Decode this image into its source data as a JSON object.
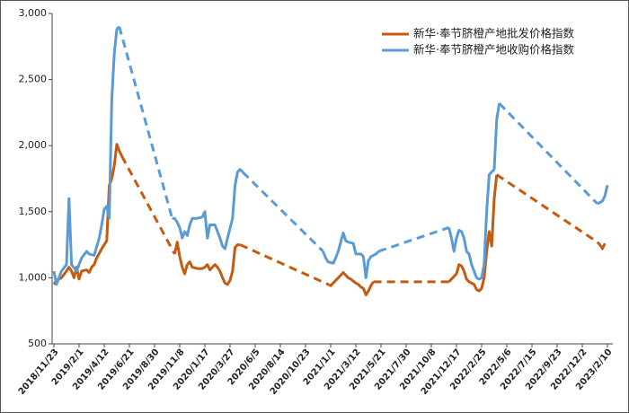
{
  "chart_data": {
    "type": "line",
    "xlim": [
      "2018/11/23",
      "2023/2/10"
    ],
    "xticks": [
      "2018/11/23",
      "2019/2/1",
      "2019/4/12",
      "2019/6/21",
      "2019/8/30",
      "2019/11/8",
      "2020/1/17",
      "2020/3/27",
      "2020/6/5",
      "2020/8/14",
      "2020/10/23",
      "2021/1/1",
      "2021/3/12",
      "2021/5/21",
      "2021/7/30",
      "2021/10/8",
      "2021/12/17",
      "2022/2/25",
      "2022/5/6",
      "2022/7/15",
      "2022/9/23",
      "2022/12/2",
      "2023/2/10"
    ],
    "ylim": [
      500,
      3000
    ],
    "yticks": [
      500,
      {
        "value": 1000,
        "label": "1,000"
      },
      {
        "value": 1500,
        "label": "1,500"
      },
      {
        "value": 2000,
        "label": "2,000"
      },
      {
        "value": 2500,
        "label": "2,500"
      },
      {
        "value": 3000,
        "label": "3,000"
      }
    ],
    "legend": "top-right",
    "series": [
      {
        "name": "新华·奉节脐橙产地批发价格指数",
        "color": "#c55a11",
        "x": [
          "2018/11/23",
          "2018/11/30",
          "2018/12/14",
          "2018/12/28",
          "2019/1/4",
          "2019/1/11",
          "2019/1/18",
          "2019/1/25",
          "2019/2/1",
          "2019/2/8",
          "2019/2/22",
          "2019/3/1",
          "2019/3/8",
          "2019/3/15",
          "2019/3/22",
          "2019/4/5",
          "2019/4/19",
          "2019/4/26",
          "2019/5/3",
          "2019/5/10",
          "2019/5/17",
          "2019/5/24",
          "2019/5/31",
          "2019/10/25",
          "2019/11/1",
          "2019/11/8",
          "2019/11/15",
          "2019/11/22",
          "2019/11/29",
          "2019/12/6",
          "2019/12/13",
          "2019/12/27",
          "2020/1/10",
          "2020/1/17",
          "2020/1/24",
          "2020/1/31",
          "2020/2/7",
          "2020/2/14",
          "2020/2/21",
          "2020/2/28",
          "2020/3/6",
          "2020/3/13",
          "2020/3/20",
          "2020/3/27",
          "2020/4/3",
          "2020/4/10",
          "2020/4/17",
          "2020/4/24",
          "2020/12/25",
          "2021/1/1",
          "2021/1/8",
          "2021/1/15",
          "2021/1/22",
          "2021/1/29",
          "2021/2/5",
          "2021/2/12",
          "2021/2/19",
          "2021/2/26",
          "2021/3/12",
          "2021/3/19",
          "2021/3/26",
          "2021/4/2",
          "2021/4/9",
          "2021/4/16",
          "2021/4/23",
          "2021/4/30",
          "2021/11/26",
          "2021/12/3",
          "2021/12/10",
          "2021/12/17",
          "2021/12/24",
          "2021/12/31",
          "2022/1/7",
          "2022/1/14",
          "2022/1/21",
          "2022/1/28",
          "2022/2/4",
          "2022/2/11",
          "2022/2/18",
          "2022/2/25",
          "2022/3/4",
          "2022/3/11",
          "2022/3/18",
          "2022/3/25",
          "2022/4/1",
          "2022/4/8",
          "2023/1/13",
          "2023/1/20",
          "2023/1/27",
          "2023/2/3"
        ],
        "values": [
          950,
          980,
          1000,
          1050,
          1080,
          1050,
          1000,
          1080,
          990,
          1050,
          1060,
          1040,
          1080,
          1100,
          1150,
          1220,
          1280,
          1700,
          1750,
          1850,
          2010,
          1960,
          1920,
          1180,
          1270,
          1160,
          1080,
          1030,
          1100,
          1120,
          1080,
          1070,
          1070,
          1080,
          1100,
          1060,
          1080,
          1100,
          1080,
          1050,
          1000,
          960,
          950,
          980,
          1050,
          1230,
          1250,
          1250,
          950,
          940,
          960,
          980,
          1000,
          1020,
          1040,
          1020,
          1000,
          990,
          960,
          950,
          930,
          920,
          870,
          900,
          940,
          970,
          970,
          990,
          1010,
          1030,
          1100,
          1090,
          1050,
          990,
          970,
          960,
          950,
          910,
          900,
          920,
          1000,
          1200,
          1350,
          1240,
          1600,
          1780,
          1270,
          1250,
          1220,
          1260
        ]
      },
      {
        "name": "新华·奉节脐橙产地收购价格指数",
        "color": "#5b9bd5",
        "x": [
          "2018/11/23",
          "2018/11/30",
          "2018/12/14",
          "2018/12/28",
          "2019/1/4",
          "2019/1/11",
          "2019/1/25",
          "2019/2/8",
          "2019/2/22",
          "2019/3/1",
          "2019/3/15",
          "2019/3/29",
          "2019/4/5",
          "2019/4/12",
          "2019/4/19",
          "2019/4/26",
          "2019/5/3",
          "2019/5/10",
          "2019/5/17",
          "2019/5/24",
          "2019/10/18",
          "2019/10/25",
          "2019/11/1",
          "2019/11/8",
          "2019/11/15",
          "2019/11/22",
          "2019/11/29",
          "2019/12/6",
          "2019/12/13",
          "2019/12/27",
          "2020/1/10",
          "2020/1/17",
          "2020/1/24",
          "2020/1/31",
          "2020/2/14",
          "2020/2/21",
          "2020/2/28",
          "2020/3/6",
          "2020/3/13",
          "2020/3/20",
          "2020/4/3",
          "2020/4/10",
          "2020/4/17",
          "2020/4/24",
          "2020/5/1",
          "2020/12/11",
          "2020/12/18",
          "2020/12/25",
          "2021/1/8",
          "2021/1/15",
          "2021/1/22",
          "2021/1/29",
          "2021/2/5",
          "2021/2/12",
          "2021/2/19",
          "2021/3/5",
          "2021/3/12",
          "2021/3/26",
          "2021/4/2",
          "2021/4/9",
          "2021/4/16",
          "2021/4/23",
          "2021/5/7",
          "2021/5/14",
          "2021/11/26",
          "2021/12/3",
          "2021/12/10",
          "2021/12/17",
          "2021/12/24",
          "2021/12/31",
          "2022/1/7",
          "2022/1/14",
          "2022/1/21",
          "2022/1/28",
          "2022/2/4",
          "2022/2/11",
          "2022/2/18",
          "2022/2/25",
          "2022/3/4",
          "2022/3/11",
          "2022/3/18",
          "2022/3/25",
          "2022/4/1",
          "2022/4/8",
          "2022/4/15",
          "2023/1/13",
          "2023/1/20",
          "2023/1/27",
          "2023/2/3",
          "2023/2/10"
        ],
        "values": [
          1050,
          950,
          1050,
          1100,
          1600,
          1100,
          1050,
          1150,
          1200,
          1180,
          1170,
          1300,
          1400,
          1520,
          1540,
          1450,
          2350,
          2700,
          2880,
          2900,
          1450,
          1450,
          1420,
          1380,
          1300,
          1350,
          1320,
          1400,
          1450,
          1450,
          1460,
          1500,
          1300,
          1400,
          1400,
          1350,
          1300,
          1240,
          1220,
          1300,
          1450,
          1700,
          1800,
          1820,
          1800,
          1200,
          1150,
          1120,
          1110,
          1150,
          1200,
          1270,
          1340,
          1280,
          1270,
          1260,
          1180,
          1180,
          1160,
          1000,
          1130,
          1160,
          1180,
          1200,
          1380,
          1300,
          1200,
          1300,
          1360,
          1350,
          1300,
          1200,
          1180,
          1100,
          1050,
          1000,
          990,
          1000,
          1100,
          1500,
          1780,
          1800,
          1820,
          2200,
          2320,
          1560,
          1570,
          1580,
          1620,
          1700
        ]
      }
    ]
  }
}
